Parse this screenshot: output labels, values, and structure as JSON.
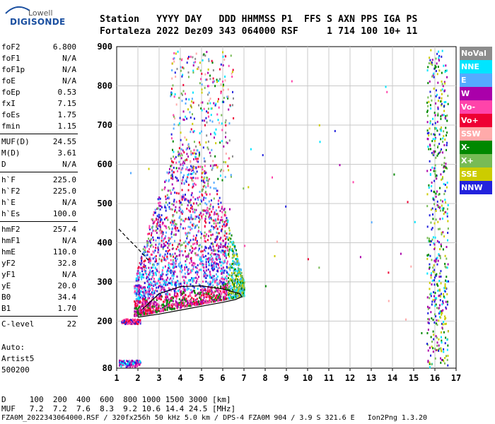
{
  "logo": {
    "line1": "Lowell",
    "line2": "DIGISONDE"
  },
  "header": {
    "line1": "Station   YYYY DAY   DDD HHMMSS P1  FFS S AXN PPS IGA PS",
    "line2": "Fortaleza 2022 Dez09 343 064000 RSF     1 714 100 10+ 11"
  },
  "params": [
    {
      "k": "foF2",
      "v": "6.800"
    },
    {
      "k": "foF1",
      "v": "N/A"
    },
    {
      "k": "foF1p",
      "v": "N/A"
    },
    {
      "k": "foE",
      "v": "N/A"
    },
    {
      "k": "foEp",
      "v": "0.53"
    },
    {
      "k": "fxI",
      "v": "7.15"
    },
    {
      "k": "foEs",
      "v": "1.75"
    },
    {
      "k": "fmin",
      "v": "1.15"
    },
    {
      "k": "MUF(D)",
      "v": "24.55"
    },
    {
      "k": "M(D)",
      "v": "3.61"
    },
    {
      "k": "D",
      "v": "N/A"
    },
    {
      "k": "h`F",
      "v": "225.0"
    },
    {
      "k": "h`F2",
      "v": "225.0"
    },
    {
      "k": "h`E",
      "v": "N/A"
    },
    {
      "k": "h`Es",
      "v": "100.0"
    },
    {
      "k": "hmF2",
      "v": "257.4"
    },
    {
      "k": "hmF1",
      "v": "N/A"
    },
    {
      "k": "hmE",
      "v": "110.0"
    },
    {
      "k": "yF2",
      "v": "32.8"
    },
    {
      "k": "yF1",
      "v": "N/A"
    },
    {
      "k": "yE",
      "v": "20.0"
    },
    {
      "k": "B0",
      "v": "34.4"
    },
    {
      "k": "B1",
      "v": "1.70"
    },
    {
      "k": "C-level",
      "v": "22"
    }
  ],
  "autoscale": {
    "line1": "Auto:",
    "line2": "Artist5",
    "line3": "500200"
  },
  "footer": {
    "d_line": "D     100  200  400  600  800 1000 1500 3000 [km]",
    "muf_line": "MUF   7.2  7.2  7.6  8.3  9.2 10.6 14.4 24.5 [MHz]",
    "info_line": "FZA0M_2022343064000.RSF / 320fx256h 50 kHz 5.0 km / DPS-4 FZA0M 904 / 3.9 S 321.6 E   Ion2Png 1.3.20"
  },
  "legend": [
    {
      "label": "NoVal",
      "color": "#8c8c8c"
    },
    {
      "label": "NNE",
      "color": "#00e5ff"
    },
    {
      "label": "E",
      "color": "#55aaff"
    },
    {
      "label": "W",
      "color": "#aa00aa"
    },
    {
      "label": "Vo-",
      "color": "#ff44aa"
    },
    {
      "label": "Vo+",
      "color": "#ee0033"
    },
    {
      "label": "SSW",
      "color": "#ffaaaa"
    },
    {
      "label": "X-",
      "color": "#008800"
    },
    {
      "label": "X+",
      "color": "#77bb55"
    },
    {
      "label": "SSE",
      "color": "#cccc00"
    },
    {
      "label": "NNW",
      "color": "#2222dd"
    }
  ],
  "chart_data": {
    "type": "scatter",
    "title": "",
    "xlabel": "",
    "ylabel": "",
    "x_ticks": [
      1,
      2,
      3,
      4,
      5,
      6,
      7,
      8,
      9,
      10,
      11,
      12,
      13,
      14,
      15,
      16,
      17
    ],
    "y_ticks": [
      80,
      200,
      300,
      400,
      500,
      600,
      700,
      800,
      900
    ],
    "xlim": [
      1,
      17
    ],
    "ylim": [
      80,
      900
    ],
    "grid": true,
    "legend_position": "right",
    "traces": [
      {
        "name": "lower-trace",
        "style": "solid",
        "x": [
          2.0,
          3.0,
          4.0,
          5.0,
          6.0,
          6.6,
          6.9,
          6.8,
          6.0,
          5.0,
          4.0,
          3.0,
          2.2
        ],
        "y": [
          210,
          218,
          228,
          238,
          248,
          255,
          262,
          270,
          282,
          290,
          288,
          270,
          230
        ]
      },
      {
        "name": "upper-trace",
        "style": "dashed",
        "x": [
          1.1,
          1.5,
          2.0,
          2.5
        ],
        "y": [
          435,
          412,
          385,
          355
        ]
      }
    ]
  }
}
